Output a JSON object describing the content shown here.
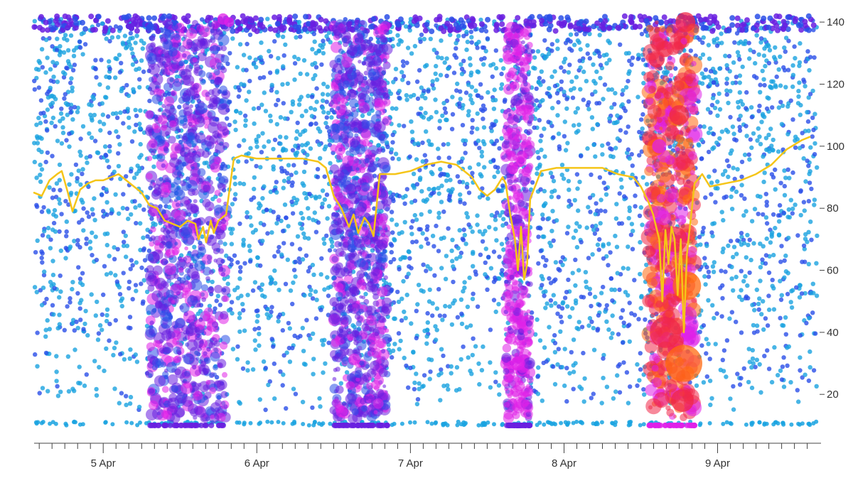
{
  "chart_data": {
    "type": "scatter",
    "title": "",
    "xlabel": "",
    "ylabel": "",
    "x_tick_labels": [
      "5 Apr",
      "6 Apr",
      "7 Apr",
      "8 Apr",
      "9 Apr"
    ],
    "x_range_days": [
      4.55,
      9.65
    ],
    "y_ticks": [
      20,
      40,
      60,
      80,
      100,
      120,
      140
    ],
    "ylim": [
      7,
      143
    ],
    "y_axis_position": "right",
    "grid": false,
    "legend": "none",
    "colors": {
      "light_blue": "#1aa3e0",
      "blue": "#2a4fe8",
      "violet": "#6a1fe0",
      "magenta": "#e020e8",
      "red": "#f02848",
      "orange": "#ff6a10",
      "median_line": "#f5c518"
    },
    "dense_bands": [
      {
        "start_day": 5.3,
        "end_day": 5.8,
        "intensity": "violet"
      },
      {
        "start_day": 6.5,
        "end_day": 6.85,
        "intensity": "violet"
      },
      {
        "start_day": 7.62,
        "end_day": 7.78,
        "intensity": "magenta"
      },
      {
        "start_day": 8.55,
        "end_day": 8.85,
        "intensity": "red-orange"
      }
    ],
    "series": [
      {
        "kind": "line",
        "points": [
          [
            4.55,
            85
          ],
          [
            4.6,
            84
          ],
          [
            4.65,
            89
          ],
          [
            4.7,
            91
          ],
          [
            4.73,
            92
          ],
          [
            4.77,
            85
          ],
          [
            4.8,
            79
          ],
          [
            4.85,
            86
          ],
          [
            4.9,
            88
          ],
          [
            4.95,
            89
          ],
          [
            5.0,
            89
          ],
          [
            5.05,
            90
          ],
          [
            5.1,
            91
          ],
          [
            5.15,
            89
          ],
          [
            5.2,
            87
          ],
          [
            5.25,
            85
          ],
          [
            5.3,
            81
          ],
          [
            5.35,
            80
          ],
          [
            5.4,
            76
          ],
          [
            5.45,
            75
          ],
          [
            5.5,
            74
          ],
          [
            5.55,
            76
          ],
          [
            5.6,
            75
          ],
          [
            5.62,
            70
          ],
          [
            5.65,
            74
          ],
          [
            5.67,
            69
          ],
          [
            5.7,
            76
          ],
          [
            5.72,
            72
          ],
          [
            5.75,
            76
          ],
          [
            5.8,
            78
          ],
          [
            5.85,
            96
          ],
          [
            5.9,
            97
          ],
          [
            6.0,
            96
          ],
          [
            6.1,
            96
          ],
          [
            6.2,
            96
          ],
          [
            6.3,
            96
          ],
          [
            6.4,
            95
          ],
          [
            6.45,
            93
          ],
          [
            6.5,
            84
          ],
          [
            6.55,
            80
          ],
          [
            6.6,
            74
          ],
          [
            6.63,
            78
          ],
          [
            6.66,
            72
          ],
          [
            6.7,
            77
          ],
          [
            6.73,
            75
          ],
          [
            6.76,
            71
          ],
          [
            6.8,
            91
          ],
          [
            6.9,
            91
          ],
          [
            7.0,
            92
          ],
          [
            7.1,
            94
          ],
          [
            7.2,
            95
          ],
          [
            7.3,
            94
          ],
          [
            7.4,
            90
          ],
          [
            7.45,
            86
          ],
          [
            7.5,
            84
          ],
          [
            7.55,
            86
          ],
          [
            7.6,
            90
          ],
          [
            7.62,
            88
          ],
          [
            7.65,
            78
          ],
          [
            7.68,
            70
          ],
          [
            7.7,
            60
          ],
          [
            7.72,
            74
          ],
          [
            7.74,
            57
          ],
          [
            7.76,
            62
          ],
          [
            7.78,
            83
          ],
          [
            7.85,
            92
          ],
          [
            7.95,
            93
          ],
          [
            8.1,
            93
          ],
          [
            8.25,
            93
          ],
          [
            8.35,
            91
          ],
          [
            8.45,
            90
          ],
          [
            8.5,
            87
          ],
          [
            8.55,
            82
          ],
          [
            8.58,
            78
          ],
          [
            8.6,
            74
          ],
          [
            8.62,
            70
          ],
          [
            8.64,
            50
          ],
          [
            8.66,
            73
          ],
          [
            8.68,
            62
          ],
          [
            8.7,
            74
          ],
          [
            8.72,
            70
          ],
          [
            8.74,
            52
          ],
          [
            8.76,
            70
          ],
          [
            8.78,
            40
          ],
          [
            8.8,
            65
          ],
          [
            8.85,
            88
          ],
          [
            8.9,
            91
          ],
          [
            8.95,
            87
          ],
          [
            9.05,
            88
          ],
          [
            9.15,
            89
          ],
          [
            9.25,
            91
          ],
          [
            9.35,
            94
          ],
          [
            9.45,
            99
          ],
          [
            9.55,
            102
          ],
          [
            9.6,
            103
          ]
        ]
      }
    ]
  }
}
